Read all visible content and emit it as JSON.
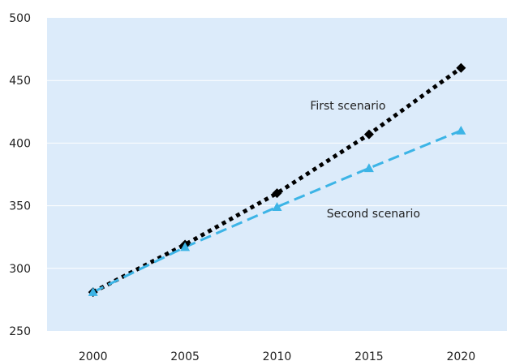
{
  "chart_data": {
    "type": "line",
    "title": "",
    "xlabel": "",
    "ylabel": "",
    "x": [
      2000,
      2005,
      2010,
      2015,
      2020
    ],
    "xlim": [
      1997.5,
      2022.5
    ],
    "ylim": [
      250,
      500
    ],
    "yticks": [
      250,
      300,
      350,
      400,
      450,
      500
    ],
    "grid": true,
    "legend": "none",
    "colors": {
      "plot_background": "#dcebfa",
      "gridline": "#ffffff",
      "first_scenario": "#000000",
      "second_scenario": "#3cb4e6"
    },
    "series": [
      {
        "name": "First scenario",
        "line_style": "dotted",
        "marker": "diamond",
        "values": [
          281,
          319,
          360,
          407,
          460
        ]
      },
      {
        "name": "Second scenario",
        "line_style": "dashed",
        "marker": "triangle",
        "values": [
          281,
          317,
          349,
          380,
          410
        ]
      }
    ],
    "annotations": [
      {
        "text": "First scenario",
        "series": 0
      },
      {
        "text": "Second scenario",
        "series": 1
      }
    ]
  }
}
